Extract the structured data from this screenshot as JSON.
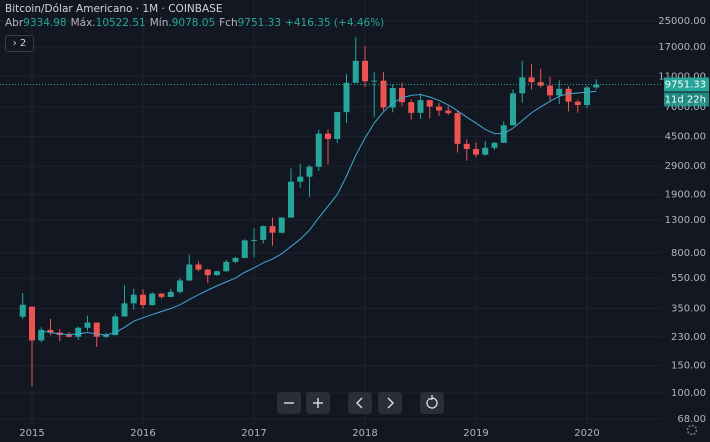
{
  "header": {
    "symbol": "Bitcoin/Dólar Americano · 1M · COINBASE",
    "ohlc": [
      {
        "label": "Abr",
        "value": 9334.98
      },
      {
        "label": "Máx.",
        "value": 10522.51
      },
      {
        "label": "Mín.",
        "value": 9078.05
      },
      {
        "label": "Fch",
        "value": 9751.33
      }
    ],
    "change": "+416.35 (+4.46%)",
    "badge": "2"
  },
  "chart_data": {
    "type": "candlestick",
    "log_scale": true,
    "grid": true,
    "categories": [
      null,
      "2015",
      null,
      null,
      null,
      null,
      null,
      null,
      null,
      null,
      null,
      null,
      null,
      "2016",
      null,
      null,
      null,
      null,
      null,
      null,
      null,
      null,
      null,
      null,
      null,
      "2017",
      null,
      null,
      null,
      null,
      null,
      null,
      null,
      null,
      null,
      null,
      null,
      "2018",
      null,
      null,
      null,
      null,
      null,
      null,
      null,
      null,
      null,
      null,
      null,
      "2019",
      null,
      null,
      null,
      null,
      null,
      null,
      null,
      null,
      null,
      null,
      null,
      "2020",
      null
    ],
    "candles": {
      "up_color": "#26a69a",
      "down_color": "#ef5350",
      "open": [
        310,
        360,
        218,
        255,
        245,
        236,
        230,
        263,
        284,
        230,
        236,
        311,
        378,
        430,
        369,
        437,
        416,
        448,
        531,
        673,
        624,
        575,
        609,
        700,
        742,
        963,
        970,
        1190,
        1079,
        1350,
        2300,
        2480,
        2875,
        4700,
        4340,
        6470,
        10000,
        13850,
        10220,
        10330,
        6930,
        9250,
        7500,
        6400,
        7730,
        7025,
        6630,
        6370,
        4040,
        3740,
        3440,
        3810,
        4100,
        5320,
        8560,
        10820,
        10090,
        9590,
        8300,
        9150,
        7550,
        7190,
        9334.98
      ],
      "high": [
        440,
        360,
        265,
        300,
        258,
        248,
        268,
        315,
        285,
        245,
        325,
        495,
        470,
        465,
        445,
        440,
        468,
        550,
        780,
        705,
        630,
        615,
        720,
        755,
        980,
        1150,
        1200,
        1350,
        1360,
        2800,
        3000,
        2950,
        4980,
        4975,
        6450,
        11400,
        19800,
        17250,
        11800,
        11700,
        9780,
        10000,
        7800,
        8500,
        7780,
        7420,
        7050,
        6580,
        4320,
        4120,
        4220,
        4140,
        5640,
        9080,
        13880,
        13190,
        12330,
        10940,
        10370,
        9510,
        7750,
        9580,
        10522.51
      ],
      "low": [
        300,
        110,
        212,
        235,
        215,
        228,
        220,
        252,
        198,
        225,
        235,
        310,
        345,
        350,
        365,
        405,
        414,
        437,
        525,
        608,
        510,
        570,
        605,
        685,
        740,
        750,
        920,
        890,
        1070,
        1350,
        2100,
        1840,
        2700,
        2970,
        4100,
        5500,
        10700,
        9400,
        6000,
        6600,
        6450,
        7050,
        5780,
        5860,
        5880,
        6120,
        6200,
        3550,
        3150,
        3320,
        3380,
        3690,
        4100,
        5320,
        7450,
        9060,
        9330,
        7730,
        7300,
        6530,
        6420,
        6860,
        9078.05
      ],
      "close": [
        370,
        218,
        255,
        245,
        236,
        230,
        263,
        284,
        230,
        236,
        311,
        378,
        430,
        369,
        437,
        416,
        448,
        531,
        673,
        624,
        575,
        609,
        700,
        742,
        963,
        970,
        1190,
        1079,
        1350,
        2300,
        2480,
        2875,
        4700,
        4340,
        6470,
        10000,
        13850,
        10220,
        10330,
        6930,
        9250,
        7500,
        6400,
        7730,
        7025,
        6630,
        6370,
        4040,
        3740,
        3440,
        3810,
        4100,
        5320,
        8560,
        10820,
        10090,
        9590,
        8300,
        9150,
        7550,
        7190,
        9334.98,
        9751.33
      ]
    },
    "ma": {
      "color": "#3fa9d0",
      "values": [
        null,
        null,
        250,
        245,
        240,
        238,
        240,
        245,
        240,
        236,
        245,
        265,
        290,
        305,
        320,
        335,
        350,
        370,
        400,
        430,
        460,
        490,
        520,
        550,
        600,
        640,
        690,
        730,
        790,
        880,
        980,
        1120,
        1350,
        1600,
        1900,
        2500,
        3400,
        4400,
        5500,
        6500,
        7400,
        8000,
        8300,
        8400,
        8100,
        7700,
        7200,
        6600,
        6000,
        5500,
        5000,
        4700,
        4700,
        5100,
        5700,
        6400,
        7000,
        7600,
        8200,
        8500,
        8600,
        8700,
        8800
      ]
    },
    "ylim": [
      63,
      34200
    ],
    "yticks": [
      {
        "value": 25000,
        "label": "25000.00"
      },
      {
        "value": 17000,
        "label": "17000.00"
      },
      {
        "value": 11000,
        "label": "11000.00"
      },
      {
        "value": 7000,
        "label": "7000.00"
      },
      {
        "value": 4500,
        "label": "4500.00"
      },
      {
        "value": 2900,
        "label": "2900.00"
      },
      {
        "value": 1900,
        "label": "1900.00"
      },
      {
        "value": 1300,
        "label": "1300.00"
      },
      {
        "value": 800,
        "label": "800.00"
      },
      {
        "value": 550,
        "label": "550.00"
      },
      {
        "value": 350,
        "label": "350.00"
      },
      {
        "value": 230,
        "label": "230.00"
      },
      {
        "value": 150,
        "label": "150.00"
      },
      {
        "value": 100,
        "label": "100.00"
      },
      {
        "value": 68,
        "label": "68.00"
      }
    ],
    "last_price": 9751.33,
    "last_price_color": "#26a69a",
    "countdown": "11d 22h"
  }
}
